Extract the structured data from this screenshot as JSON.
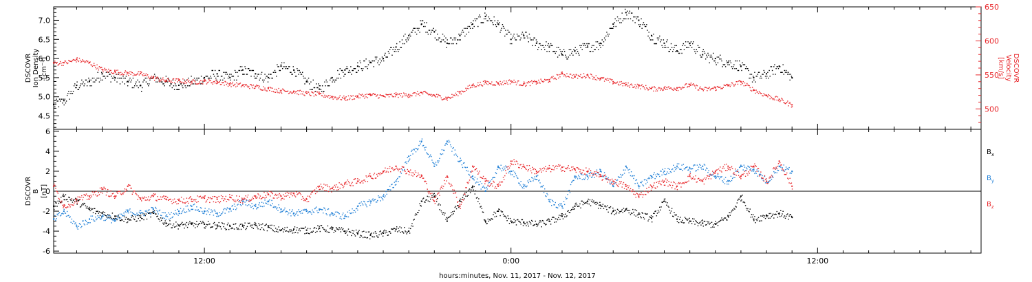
{
  "colors": {
    "black": "#000000",
    "red": "#e8262a",
    "blue": "#1f7fd6"
  },
  "chart_data": [
    {
      "type": "scatter",
      "panel": "plasma",
      "x_unit": "hours since Nov. 11, 2017 00:00",
      "xlim": [
        6.1,
        42.4
      ],
      "x_ticks": [
        12,
        24,
        36
      ],
      "x_tick_labels": [
        "12:00",
        "0:00",
        "12:00"
      ],
      "xlabel": "hours:minutes, Nov. 11, 2017 - Nov. 12, 2017",
      "left_axis": {
        "label_lines": [
          "DSCOVR",
          "Ion Density",
          "[cm⁻³]"
        ],
        "ylim": [
          4.15,
          7.35
        ],
        "ticks": [
          4.5,
          5.0,
          5.5,
          6.0,
          6.5,
          7.0
        ],
        "tick_labels": [
          "4.5",
          "5.0",
          "5.5",
          "6.0",
          "6.5",
          "7.0"
        ]
      },
      "right_axis": {
        "label_lines": [
          "DSCOVR",
          "Velocity",
          "[km/s]"
        ],
        "ylim": [
          470,
          650
        ],
        "ticks": [
          500,
          550,
          600,
          650
        ],
        "tick_labels": [
          "500",
          "550",
          "600",
          "650"
        ]
      },
      "series": [
        {
          "name": "Ion Density",
          "axis": "left",
          "color": "#000000",
          "x": [
            6.1,
            6.5,
            7.0,
            7.5,
            8.0,
            8.5,
            9.0,
            9.5,
            10.0,
            10.5,
            11.0,
            11.5,
            12.0,
            12.5,
            13.0,
            13.5,
            14.0,
            14.5,
            15.0,
            15.5,
            16.0,
            16.5,
            17.0,
            17.5,
            18.0,
            18.5,
            19.0,
            19.5,
            20.0,
            20.5,
            21.0,
            21.5,
            22.0,
            22.5,
            23.0,
            23.5,
            24.0,
            24.5,
            25.0,
            25.5,
            26.0,
            26.5,
            27.0,
            27.5,
            28.0,
            28.5,
            29.0,
            29.5,
            30.0,
            30.5,
            31.0,
            31.5,
            32.0,
            32.5,
            33.0,
            33.5,
            34.0,
            34.5,
            35.0
          ],
          "y": [
            4.8,
            4.9,
            5.3,
            5.4,
            5.6,
            5.5,
            5.4,
            5.3,
            5.5,
            5.4,
            5.3,
            5.4,
            5.5,
            5.6,
            5.5,
            5.7,
            5.6,
            5.5,
            5.8,
            5.7,
            5.4,
            5.2,
            5.5,
            5.7,
            5.8,
            5.9,
            6.0,
            6.3,
            6.6,
            6.9,
            6.7,
            6.4,
            6.6,
            6.9,
            7.1,
            6.9,
            6.5,
            6.6,
            6.4,
            6.3,
            6.1,
            6.2,
            6.3,
            6.4,
            6.9,
            7.2,
            7.0,
            6.6,
            6.4,
            6.2,
            6.4,
            6.1,
            6.0,
            5.9,
            5.8,
            5.5,
            5.6,
            5.8,
            5.5
          ]
        },
        {
          "name": "Velocity",
          "axis": "right",
          "color": "#e8262a",
          "x": [
            6.1,
            6.5,
            7.0,
            7.5,
            8.0,
            8.5,
            9.0,
            9.5,
            10.0,
            10.5,
            11.0,
            11.5,
            12.0,
            12.5,
            13.0,
            13.5,
            14.0,
            14.5,
            15.0,
            15.5,
            16.0,
            16.5,
            17.0,
            17.5,
            18.0,
            18.5,
            19.0,
            19.5,
            20.0,
            20.5,
            21.0,
            21.5,
            22.0,
            22.5,
            23.0,
            23.5,
            24.0,
            24.5,
            25.0,
            25.5,
            26.0,
            26.5,
            27.0,
            27.5,
            28.0,
            28.5,
            29.0,
            29.5,
            30.0,
            30.5,
            31.0,
            31.5,
            32.0,
            32.5,
            33.0,
            33.5,
            34.0,
            34.5,
            35.0
          ],
          "y": [
            568,
            568,
            573,
            568,
            558,
            555,
            553,
            552,
            546,
            542,
            542,
            540,
            541,
            540,
            537,
            535,
            533,
            530,
            527,
            526,
            523,
            522,
            518,
            516,
            519,
            521,
            519,
            521,
            521,
            524,
            520,
            516,
            525,
            535,
            539,
            538,
            541,
            537,
            540,
            543,
            552,
            548,
            550,
            545,
            540,
            536,
            534,
            530,
            531,
            531,
            536,
            529,
            531,
            535,
            540,
            528,
            520,
            514,
            506
          ]
        }
      ]
    },
    {
      "type": "scatter",
      "panel": "magnetic field",
      "x_unit": "hours since Nov. 11, 2017 00:00",
      "xlim": [
        6.1,
        42.4
      ],
      "left_axis": {
        "label_lines": [
          "DSCOVR",
          "B",
          "[nT]"
        ],
        "ylim": [
          -6.2,
          6.2
        ],
        "ticks": [
          -6,
          -4,
          -2,
          0,
          2,
          4,
          6
        ],
        "tick_labels": [
          "-6",
          "-4",
          "-2",
          "0",
          "2",
          "4",
          "6"
        ]
      },
      "legend_placement": "right",
      "zero_line": true,
      "series": [
        {
          "name": "Bx",
          "color": "#000000",
          "x": [
            6.1,
            6.5,
            7.0,
            7.5,
            8.0,
            8.5,
            9.0,
            9.5,
            10.0,
            10.5,
            11.0,
            11.5,
            12.0,
            12.5,
            13.0,
            13.5,
            14.0,
            14.5,
            15.0,
            15.5,
            16.0,
            16.5,
            17.0,
            17.5,
            18.0,
            18.5,
            19.0,
            19.5,
            20.0,
            20.5,
            21.0,
            21.5,
            22.0,
            22.5,
            23.0,
            23.5,
            24.0,
            24.5,
            25.0,
            25.5,
            26.0,
            26.5,
            27.0,
            27.5,
            28.0,
            28.5,
            29.0,
            29.5,
            30.0,
            30.5,
            31.0,
            31.5,
            32.0,
            32.5,
            33.0,
            33.5,
            34.0,
            34.5,
            35.0
          ],
          "y": [
            -1.5,
            -0.5,
            -1.0,
            -1.8,
            -2.2,
            -2.5,
            -2.8,
            -2.6,
            -2.2,
            -3.2,
            -3.4,
            -3.3,
            -3.3,
            -3.4,
            -3.5,
            -3.5,
            -3.4,
            -3.6,
            -3.9,
            -3.8,
            -3.9,
            -3.7,
            -3.8,
            -4.0,
            -4.2,
            -4.4,
            -4.2,
            -3.8,
            -4.0,
            -1.0,
            -0.5,
            -3.0,
            -1.0,
            0.5,
            -3.0,
            -2.0,
            -3.0,
            -3.1,
            -3.3,
            -3.0,
            -2.5,
            -1.5,
            -1.0,
            -1.4,
            -2.0,
            -1.8,
            -2.3,
            -2.7,
            -1.0,
            -2.8,
            -3.0,
            -3.2,
            -3.3,
            -2.5,
            -0.5,
            -2.8,
            -2.4,
            -2.2,
            -2.6
          ]
        },
        {
          "name": "By",
          "color": "#1f7fd6",
          "x": [
            6.1,
            6.5,
            7.0,
            7.5,
            8.0,
            8.5,
            9.0,
            9.5,
            10.0,
            10.5,
            11.0,
            11.5,
            12.0,
            12.5,
            13.0,
            13.5,
            14.0,
            14.5,
            15.0,
            15.5,
            16.0,
            16.5,
            17.0,
            17.5,
            18.0,
            18.5,
            19.0,
            19.5,
            20.0,
            20.5,
            21.0,
            21.5,
            22.0,
            22.5,
            23.0,
            23.5,
            24.0,
            24.5,
            25.0,
            25.5,
            26.0,
            26.5,
            27.0,
            27.5,
            28.0,
            28.5,
            29.0,
            29.5,
            30.0,
            30.5,
            31.0,
            31.5,
            32.0,
            32.5,
            33.0,
            33.5,
            34.0,
            34.5,
            35.0
          ],
          "y": [
            -2.8,
            -2.0,
            -3.5,
            -2.8,
            -2.5,
            -2.9,
            -2.0,
            -2.2,
            -1.8,
            -2.5,
            -2.0,
            -1.5,
            -2.0,
            -2.2,
            -1.8,
            -1.0,
            -1.5,
            -1.0,
            -1.8,
            -2.2,
            -2.0,
            -1.8,
            -2.2,
            -2.5,
            -1.5,
            -1.0,
            -0.5,
            1.0,
            3.5,
            5.0,
            2.5,
            5.0,
            3.0,
            1.5,
            0.0,
            2.5,
            2.0,
            0.5,
            1.5,
            -1.0,
            -1.5,
            1.5,
            1.5,
            2.0,
            0.5,
            2.5,
            0.5,
            1.5,
            2.0,
            2.5,
            2.3,
            2.5,
            1.5,
            1.0,
            2.5,
            2.2,
            1.0,
            2.5,
            2.0
          ]
        },
        {
          "name": "Bz",
          "color": "#e8262a",
          "x": [
            6.1,
            6.5,
            7.0,
            7.5,
            8.0,
            8.5,
            9.0,
            9.5,
            10.0,
            10.5,
            11.0,
            11.5,
            12.0,
            12.5,
            13.0,
            13.5,
            14.0,
            14.5,
            15.0,
            15.5,
            16.0,
            16.5,
            17.0,
            17.5,
            18.0,
            18.5,
            19.0,
            19.5,
            20.0,
            20.5,
            21.0,
            21.5,
            22.0,
            22.5,
            23.0,
            23.5,
            24.0,
            24.5,
            25.0,
            25.5,
            26.0,
            26.5,
            27.0,
            27.5,
            28.0,
            28.5,
            29.0,
            29.5,
            30.0,
            30.5,
            31.0,
            31.5,
            32.0,
            32.5,
            33.0,
            33.5,
            34.0,
            34.5,
            35.0
          ],
          "y": [
            0.5,
            -1.5,
            -0.8,
            -0.5,
            0.2,
            -0.5,
            0.5,
            -0.8,
            -0.5,
            -0.8,
            -0.9,
            -0.8,
            -0.7,
            -0.8,
            -0.6,
            -0.8,
            -0.5,
            -0.3,
            -0.5,
            -0.2,
            -0.8,
            0.5,
            0.3,
            0.8,
            1.0,
            1.5,
            2.0,
            2.5,
            2.0,
            1.5,
            -1.0,
            1.5,
            -1.5,
            2.5,
            1.0,
            0.5,
            3.0,
            2.5,
            2.0,
            2.3,
            2.4,
            2.2,
            2.0,
            1.5,
            1.0,
            0.5,
            -0.5,
            0.5,
            1.0,
            0.5,
            1.5,
            1.0,
            2.0,
            2.5,
            1.5,
            2.5,
            1.0,
            3.0,
            0.5
          ]
        }
      ]
    }
  ]
}
